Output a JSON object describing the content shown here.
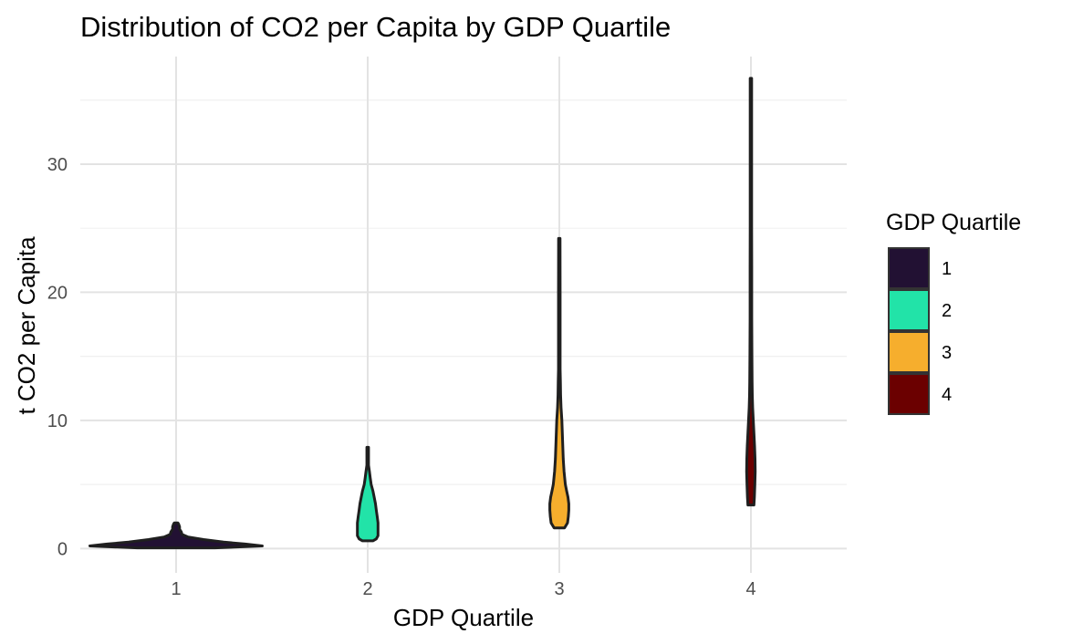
{
  "chart_data": {
    "type": "violin",
    "title": "Distribution of CO2 per Capita by GDP Quartile",
    "xlabel": "GDP Quartile",
    "ylabel": "t CO2 per Capita",
    "categories": [
      "1",
      "2",
      "3",
      "4"
    ],
    "ylim": [
      -1.9,
      38.4
    ],
    "yticks": [
      0,
      10,
      20,
      30
    ],
    "ytick_labels": [
      "0",
      "10",
      "20",
      "30"
    ],
    "grid": true,
    "legend": {
      "title": "GDP Quartile",
      "position": "right",
      "entries": [
        "1",
        "2",
        "3",
        "4"
      ]
    },
    "colors": [
      "#221133",
      "#22e3a8",
      "#f6ae2d",
      "#6b0000"
    ],
    "series": [
      {
        "category": "1",
        "profile": [
          [
            0.05,
            0.45
          ],
          [
            0.2,
            1.0
          ],
          [
            0.35,
            0.8
          ],
          [
            0.5,
            0.55
          ],
          [
            0.7,
            0.32
          ],
          [
            0.9,
            0.14
          ],
          [
            1.1,
            0.07
          ],
          [
            1.3,
            0.06
          ],
          [
            1.5,
            0.04
          ],
          [
            1.7,
            0.04
          ],
          [
            1.9,
            0.03
          ],
          [
            2.0,
            0.02
          ]
        ]
      },
      {
        "category": "2",
        "profile": [
          [
            0.6,
            0.06
          ],
          [
            0.75,
            0.1
          ],
          [
            1.0,
            0.12
          ],
          [
            1.5,
            0.12
          ],
          [
            2.0,
            0.12
          ],
          [
            2.5,
            0.11
          ],
          [
            3.0,
            0.1
          ],
          [
            3.5,
            0.09
          ],
          [
            4.0,
            0.075
          ],
          [
            4.5,
            0.06
          ],
          [
            5.0,
            0.04
          ],
          [
            5.5,
            0.03
          ],
          [
            6.0,
            0.02
          ],
          [
            6.5,
            0.01
          ],
          [
            7.0,
            0.01
          ],
          [
            7.5,
            0.01
          ],
          [
            7.9,
            0.01
          ]
        ]
      },
      {
        "category": "3",
        "profile": [
          [
            1.6,
            0.06
          ],
          [
            2.0,
            0.095
          ],
          [
            2.5,
            0.105
          ],
          [
            3.0,
            0.11
          ],
          [
            3.5,
            0.11
          ],
          [
            4.0,
            0.1
          ],
          [
            4.5,
            0.085
          ],
          [
            5.0,
            0.07
          ],
          [
            6.0,
            0.055
          ],
          [
            7.0,
            0.045
          ],
          [
            8.0,
            0.04
          ],
          [
            9.0,
            0.035
          ],
          [
            10.0,
            0.03
          ],
          [
            11.0,
            0.02
          ],
          [
            12.0,
            0.015
          ],
          [
            13.0,
            0.013
          ],
          [
            14.0,
            0.01
          ],
          [
            16.0,
            0.01
          ],
          [
            20.0,
            0.009
          ],
          [
            24.2,
            0.008
          ]
        ]
      },
      {
        "category": "4",
        "profile": [
          [
            3.4,
            0.035
          ],
          [
            4.0,
            0.04
          ],
          [
            5.0,
            0.045
          ],
          [
            6.0,
            0.05
          ],
          [
            7.0,
            0.048
          ],
          [
            8.0,
            0.042
          ],
          [
            9.0,
            0.035
          ],
          [
            10.0,
            0.028
          ],
          [
            11.0,
            0.02
          ],
          [
            12.0,
            0.016
          ],
          [
            13.0,
            0.014
          ],
          [
            15.0,
            0.012
          ],
          [
            18.0,
            0.01
          ],
          [
            20.0,
            0.01
          ],
          [
            22.0,
            0.009
          ],
          [
            25.0,
            0.008
          ],
          [
            30.0,
            0.008
          ],
          [
            36.7,
            0.008
          ]
        ]
      }
    ]
  }
}
